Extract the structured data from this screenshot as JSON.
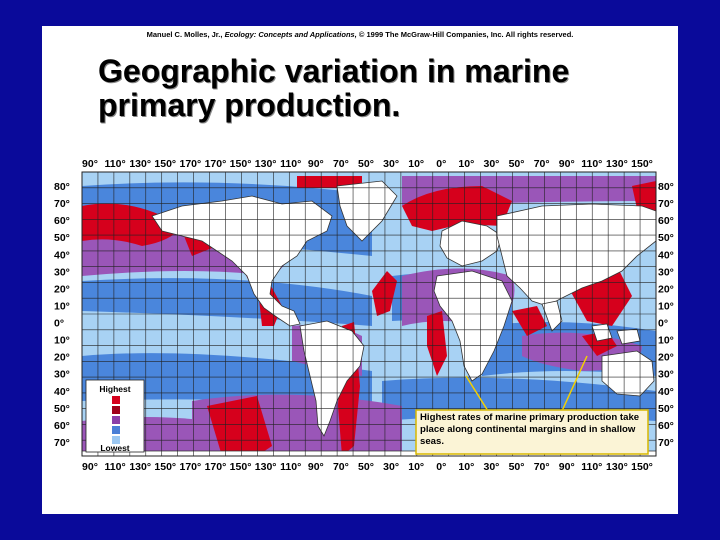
{
  "credit": {
    "author": "Manuel C. Molles, Jr.,",
    "book": "Ecology: Concepts and Applications,",
    "rights": "© 1999 The McGraw-Hill Companies, Inc. All rights reserved."
  },
  "title": "Geographic variation in marine primary production.",
  "map": {
    "top_longitudes": [
      "90°",
      "110°",
      "130°",
      "150°",
      "170°",
      "170°",
      "150°",
      "130°",
      "110°",
      "90°",
      "70°",
      "50°",
      "30°",
      "10°",
      "0°",
      "10°",
      "30°",
      "50°",
      "70°",
      "90°",
      "110°",
      "130°",
      "150°"
    ],
    "bottom_longitudes": [
      "90°",
      "110°",
      "130°",
      "150°",
      "170°",
      "170°",
      "150°",
      "130°",
      "110°",
      "90°",
      "70°",
      "50°",
      "30°",
      "10°",
      "0°",
      "10°",
      "30°",
      "50°",
      "70°",
      "90°",
      "110°",
      "130°",
      "150°"
    ],
    "left_latitudes": [
      "80°",
      "70°",
      "60°",
      "50°",
      "40°",
      "30°",
      "20°",
      "10°",
      "0°",
      "10°",
      "20°",
      "30°",
      "40°",
      "50°",
      "60°",
      "70°"
    ],
    "right_latitudes": [
      "80°",
      "70°",
      "60°",
      "50°",
      "40°",
      "30°",
      "20°",
      "10°",
      "0°",
      "10°",
      "20°",
      "30°",
      "40°",
      "50°",
      "60°",
      "70°"
    ]
  },
  "legend": {
    "highest": "Highest",
    "lowest": "Lowest",
    "swatches": [
      "#d6001c",
      "#a0001a",
      "#8a3fa8",
      "#4a7fd6",
      "#9cc8f2"
    ]
  },
  "callout": "Highest rates of marine primary production take place along continental margins and in shallow seas.",
  "colors": {
    "background": "#0a0a9a",
    "highest": "#d6001c",
    "high": "#a0001a",
    "medium": "#9a56b8",
    "low": "#4a86dc",
    "lowest": "#a8d2f4",
    "land": "#ffffff",
    "callout_bg": "#fbf4d6"
  }
}
